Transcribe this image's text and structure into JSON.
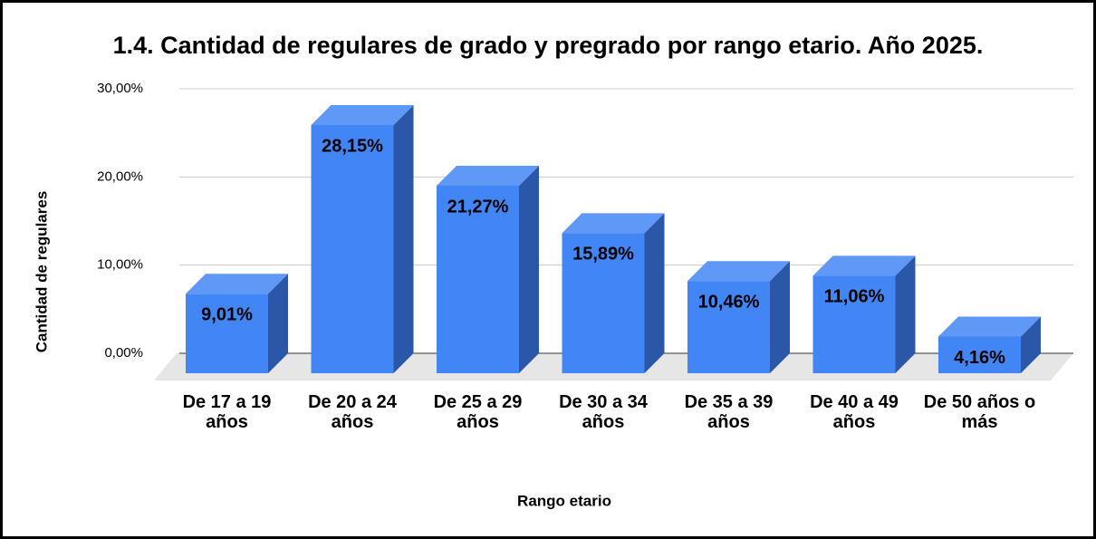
{
  "chart_data": {
    "type": "bar3d",
    "title": "1.4. Cantidad de regulares de grado y pregrado por rango etario. Año 2025.",
    "x_label": "Rango etario",
    "y_label": "Cantidad de regulares",
    "categories": [
      "De 17 a 19 años",
      "De 20 a 24 años",
      "De 25 a 29 años",
      "De 30 a 34 años",
      "De 35 a 39 años",
      "De 40 a 49 años",
      "De 50 años o más"
    ],
    "values": [
      9.01,
      28.15,
      21.27,
      15.89,
      10.46,
      11.06,
      4.16
    ],
    "value_labels": [
      "9,01%",
      "28,15%",
      "21,27%",
      "15,89%",
      "10,46%",
      "11,06%",
      "4,16%"
    ],
    "color": "#4285f4",
    "ylim": [
      0,
      30
    ],
    "yticks": [
      {
        "value": 0,
        "label": "0,00%"
      },
      {
        "value": 10,
        "label": "10,00%"
      },
      {
        "value": 20,
        "label": "20,00%"
      },
      {
        "value": 30,
        "label": "30,00%"
      }
    ],
    "grid": true
  }
}
